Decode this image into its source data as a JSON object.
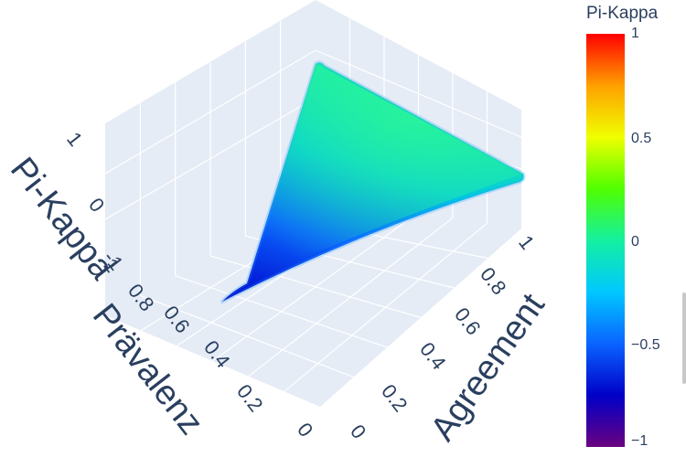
{
  "chart_data": {
    "type": "surface3d",
    "axes": {
      "x": {
        "title": "Agreement",
        "ticks": [
          "0",
          "0.2",
          "0.4",
          "0.6",
          "0.8",
          "1"
        ]
      },
      "y": {
        "title": "Prävalenz",
        "ticks": [
          "0",
          "0.2",
          "0.4",
          "0.6",
          "0.8",
          "1"
        ]
      },
      "z": {
        "title": "Pi-Kappa",
        "ticks": [
          "-1",
          "0",
          "1"
        ]
      }
    },
    "surface_vertices": [
      {
        "agreement": 0.0,
        "praevalenz": 1.0,
        "pi_kappa": -1.0
      },
      {
        "agreement": 1.0,
        "praevalenz": 1.0,
        "pi_kappa": 0.0
      },
      {
        "agreement": 1.0,
        "praevalenz": 0.0,
        "pi_kappa": 0.0
      }
    ],
    "colorscale": [
      "#6a0080",
      "#0000c8",
      "#0a64ff",
      "#00c8ff",
      "#14f0a0",
      "#50ff00",
      "#f0ff00",
      "#ffa000",
      "#ff0000"
    ],
    "colorbar": {
      "title": "Pi-Kappa",
      "range": [
        -1,
        1
      ],
      "ticks": [
        "1",
        "0.5",
        "0",
        "−0.5",
        "−1"
      ],
      "tick_values": [
        1,
        0.5,
        0,
        -0.5,
        -1
      ]
    },
    "scene_background": "#e5ecf6",
    "grid_color": "#ffffff"
  }
}
